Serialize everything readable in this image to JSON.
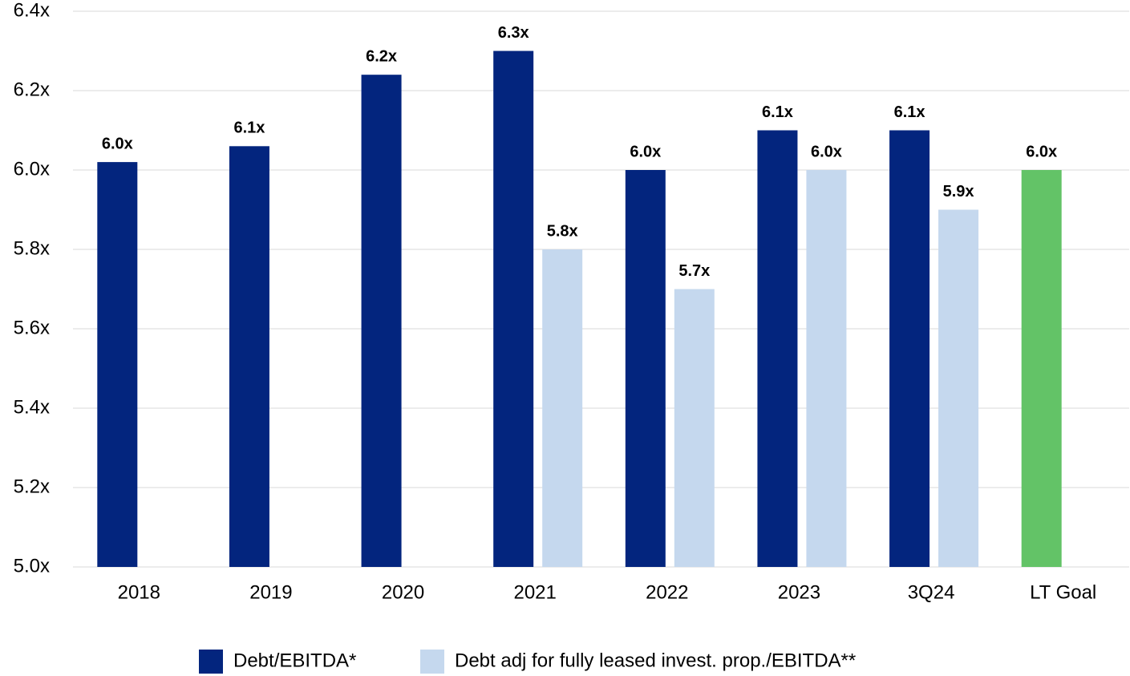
{
  "chart_data": {
    "type": "bar",
    "categories": [
      "2018",
      "2019",
      "2020",
      "2021",
      "2022",
      "2023",
      "3Q24",
      "LT Goal"
    ],
    "series": [
      {
        "name": "Debt/EBITDA*",
        "color": "#03257e",
        "colors": [
          "#03257e",
          "#03257e",
          "#03257e",
          "#03257e",
          "#03257e",
          "#03257e",
          "#03257e",
          "#63c367"
        ],
        "values": [
          6.02,
          6.06,
          6.24,
          6.3,
          6.0,
          6.1,
          6.1,
          6.0
        ],
        "value_labels": [
          "6.0x",
          "6.1x",
          "6.2x",
          "6.3x",
          "6.0x",
          "6.1x",
          "6.1x",
          "6.0x"
        ]
      },
      {
        "name": "Debt adj for fully leased invest. prop./EBITDA**",
        "color": "#c5d8ee",
        "values": [
          null,
          null,
          null,
          5.8,
          5.7,
          6.0,
          5.9,
          null
        ],
        "value_labels": [
          null,
          null,
          null,
          "5.8x",
          "5.7x",
          "6.0x",
          "5.9x",
          null
        ]
      }
    ],
    "ylim": [
      5.0,
      6.4
    ],
    "yticks": [
      {
        "value": 5.0,
        "label": "5.0x"
      },
      {
        "value": 5.2,
        "label": "5.2x"
      },
      {
        "value": 5.4,
        "label": "5.4x"
      },
      {
        "value": 5.6,
        "label": "5.6x"
      },
      {
        "value": 5.8,
        "label": "5.8x"
      },
      {
        "value": 6.0,
        "label": "6.0x"
      },
      {
        "value": 6.2,
        "label": "6.2x"
      },
      {
        "value": 6.4,
        "label": "6.4x"
      }
    ],
    "grid": true,
    "legend": "bottom"
  }
}
